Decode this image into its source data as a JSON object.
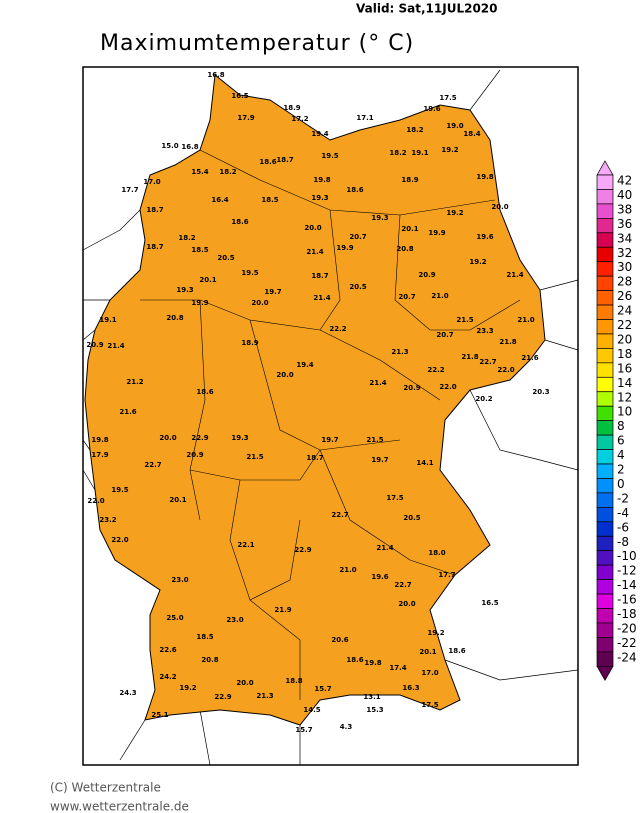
{
  "header": {
    "valid": "Valid:  Sat,11JUL2020",
    "title": "Maximumtemperatur (° C)"
  },
  "footer": {
    "copyright": "(C) Wetterzentrale",
    "url": "www.wetterzentrale.de"
  },
  "colorbar": {
    "levels": [
      42,
      40,
      38,
      36,
      34,
      32,
      30,
      28,
      26,
      24,
      22,
      20,
      18,
      16,
      14,
      12,
      10,
      8,
      6,
      4,
      2,
      0,
      -2,
      -4,
      -6,
      -8,
      -10,
      -12,
      -14,
      -16,
      -18,
      -20,
      -22,
      -24
    ],
    "colors": [
      "#f8a8f8",
      "#f080e8",
      "#e850d0",
      "#e02890",
      "#d80050",
      "#e80000",
      "#ff2000",
      "#ff4400",
      "#ff6000",
      "#ff7c00",
      "#ff9800",
      "#ffb000",
      "#ffc800",
      "#ffe000",
      "#ffff00",
      "#b0ff00",
      "#40e000",
      "#00c040",
      "#00c8a0",
      "#00d0e0",
      "#00b0ff",
      "#0090ff",
      "#0070f0",
      "#0050e0",
      "#0030d0",
      "#2020c0",
      "#5010c0",
      "#8000d0",
      "#b000e0",
      "#e000e0",
      "#c000b0",
      "#a00090",
      "#800070",
      "#600050"
    ]
  },
  "stations": [
    "16.8",
    "16.5",
    "18.9",
    "17.9",
    "17.2",
    "19.4",
    "17.1",
    "17.5",
    "19.6",
    "18.2",
    "19.0",
    "18.4",
    "15.0",
    "16.8",
    "19.2",
    "18.6",
    "18.7",
    "19.5",
    "18.2",
    "19.1",
    "15.4",
    "17.0",
    "17.7",
    "18.2",
    "19.8",
    "18.9",
    "19.8",
    "18.6",
    "18.7",
    "16.4",
    "18.5",
    "19.3",
    "20.0",
    "19.2",
    "18.6",
    "19.3",
    "20.0",
    "18.7",
    "18.2",
    "20.7",
    "20.1",
    "19.9",
    "19.6",
    "18.5",
    "21.4",
    "19.9",
    "20.8",
    "19.2",
    "20.5",
    "19.5",
    "18.7",
    "20.9",
    "21.4",
    "19.3",
    "20.1",
    "20.5",
    "20.7",
    "21.0",
    "19.7",
    "21.4",
    "19.9",
    "20.0",
    "22.2",
    "21.0",
    "19.1",
    "21.5",
    "23.3",
    "20.8",
    "20.7",
    "21.8",
    "20.9",
    "21.4",
    "18.9",
    "21.3",
    "22.2",
    "21.8",
    "22.7",
    "22.0",
    "21.6",
    "19.4",
    "20.0",
    "21.4",
    "22.0",
    "20.9",
    "21.2",
    "18.6",
    "20.3",
    "20.2",
    "21.6",
    "19.8",
    "20.0",
    "22.9",
    "19.3",
    "19.7",
    "21.5",
    "17.9",
    "20.9",
    "22.7",
    "21.5",
    "19.7",
    "18.7",
    "14.1",
    "22.0",
    "19.5",
    "20.1",
    "22.7",
    "20.5",
    "17.5",
    "22.0",
    "23.2",
    "22.1",
    "22.9",
    "21.4",
    "18.0",
    "23.0",
    "21.0",
    "22.7",
    "19.6",
    "17.7",
    "16.5",
    "25.0",
    "23.0",
    "21.9",
    "20.0",
    "20.6",
    "18.5",
    "19.2",
    "18.6",
    "20.1",
    "22.6",
    "20.8",
    "18.6",
    "19.8",
    "24.2",
    "20.0",
    "17.4",
    "18.8",
    "21.3",
    "15.7",
    "17.0",
    "24.3",
    "19.2",
    "22.9",
    "13.1",
    "16.3",
    "15.3",
    "14.5",
    "25.1",
    "17.5",
    "15.7",
    "4.3"
  ]
}
